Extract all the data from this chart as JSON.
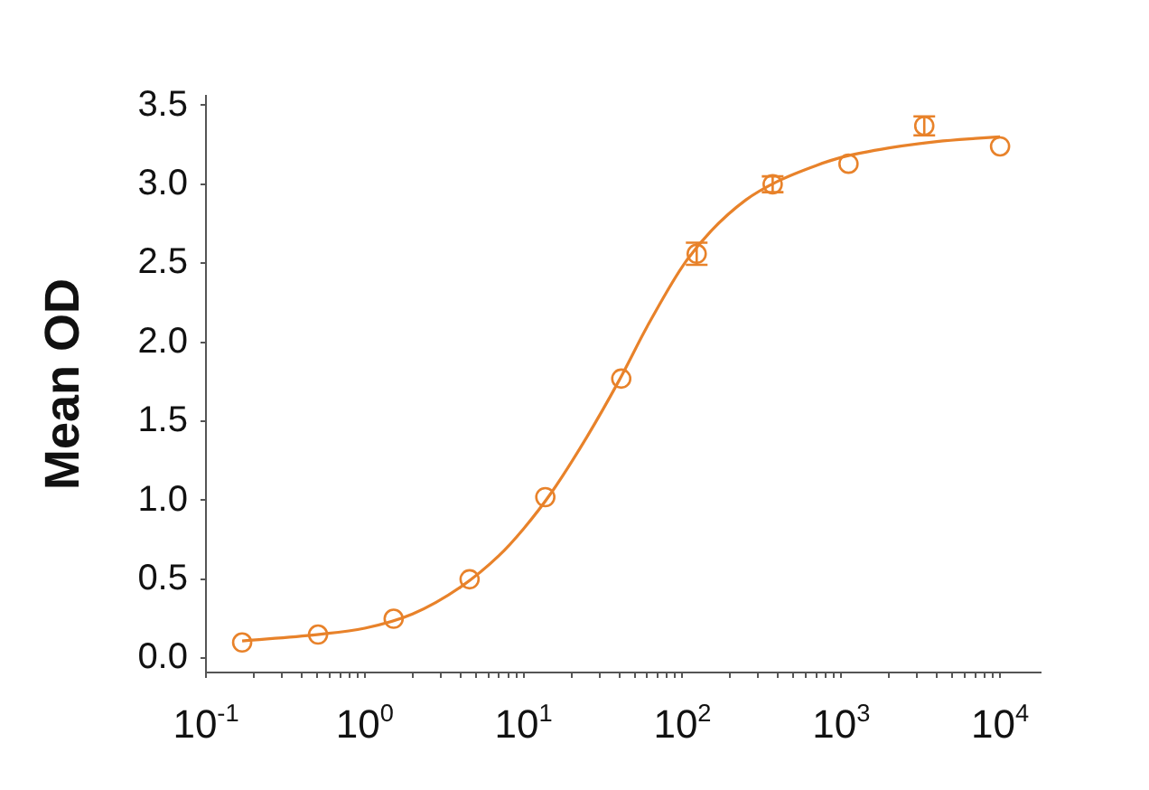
{
  "chart_data": {
    "type": "scatter",
    "ylabel": "Mean OD",
    "log": "x",
    "marker": "circle",
    "grid": false,
    "xlim": [
      0.1,
      18000
    ],
    "ylim": [
      -0.09,
      3.56
    ],
    "xticks": [
      {
        "value": 0.1,
        "label": "10$^{-1}$"
      },
      {
        "value": 0.2,
        "label": null
      },
      {
        "value": 0.3,
        "label": null
      },
      {
        "value": 0.4,
        "label": null
      },
      {
        "value": 0.5,
        "label": null
      },
      {
        "value": 0.6,
        "label": null
      },
      {
        "value": 0.7,
        "label": null
      },
      {
        "value": 0.8,
        "label": null
      },
      {
        "value": 0.9,
        "label": null
      },
      {
        "value": 1,
        "label": "10$^{0}$"
      },
      {
        "value": 2,
        "label": null
      },
      {
        "value": 3,
        "label": null
      },
      {
        "value": 4,
        "label": null
      },
      {
        "value": 5,
        "label": null
      },
      {
        "value": 6,
        "label": null
      },
      {
        "value": 7,
        "label": null
      },
      {
        "value": 8,
        "label": null
      },
      {
        "value": 9,
        "label": null
      },
      {
        "value": 10,
        "label": "10$^{1}$"
      },
      {
        "value": 20,
        "label": null
      },
      {
        "value": 30,
        "label": null
      },
      {
        "value": 40,
        "label": null
      },
      {
        "value": 50,
        "label": null
      },
      {
        "value": 60,
        "label": null
      },
      {
        "value": 70,
        "label": null
      },
      {
        "value": 80,
        "label": null
      },
      {
        "value": 90,
        "label": null
      },
      {
        "value": 100,
        "label": "10$^{2}$"
      },
      {
        "value": 200,
        "label": null
      },
      {
        "value": 300,
        "label": null
      },
      {
        "value": 400,
        "label": null
      },
      {
        "value": 500,
        "label": null
      },
      {
        "value": 600,
        "label": null
      },
      {
        "value": 700,
        "label": null
      },
      {
        "value": 800,
        "label": null
      },
      {
        "value": 900,
        "label": null
      },
      {
        "value": 1000,
        "label": "10$^{3}$"
      },
      {
        "value": 2000,
        "label": null
      },
      {
        "value": 3000,
        "label": null
      },
      {
        "value": 4000,
        "label": null
      },
      {
        "value": 5000,
        "label": null
      },
      {
        "value": 6000,
        "label": null
      },
      {
        "value": 7000,
        "label": null
      },
      {
        "value": 8000,
        "label": null
      },
      {
        "value": 9000,
        "label": null
      },
      {
        "value": 10000,
        "label": "10$^{4}$"
      }
    ],
    "yticks": [
      {
        "value": 0,
        "label": "0.0"
      },
      {
        "value": 0.5,
        "label": "0.5"
      },
      {
        "value": 1,
        "label": "1.0"
      },
      {
        "value": 1.5,
        "label": "1.5"
      },
      {
        "value": 2,
        "label": "2.0"
      },
      {
        "value": 2.5,
        "label": "2.5"
      },
      {
        "value": 3,
        "label": "3.0"
      },
      {
        "value": 3.5,
        "label": "3.5"
      }
    ],
    "series": [
      {
        "type": "scatter",
        "color": "#e8822a",
        "x": [
          0.169,
          0.508,
          1.52,
          4.57,
          13.7,
          41.2,
          123,
          370,
          1111,
          3333,
          10000
        ],
        "values": [
          0.1,
          0.15,
          0.25,
          0.5,
          1.02,
          1.77,
          2.56,
          3.0,
          3.13,
          3.37,
          3.24
        ],
        "errors": [
          null,
          null,
          null,
          null,
          null,
          null,
          0.07,
          0.05,
          null,
          0.06,
          null
        ]
      },
      {
        "type": "line",
        "color": "#e8822a",
        "marker": "none",
        "x": [
          0.169,
          0.5,
          1,
          2,
          4,
          7,
          10,
          15,
          25,
          40,
          60,
          100,
          150,
          250,
          400,
          700,
          1000,
          2000,
          4000,
          7000,
          10000
        ],
        "values": [
          0.11,
          0.15,
          0.19,
          0.28,
          0.45,
          0.65,
          0.82,
          1.05,
          1.4,
          1.76,
          2.1,
          2.48,
          2.7,
          2.9,
          3.02,
          3.12,
          3.17,
          3.23,
          3.27,
          3.29,
          3.3
        ]
      }
    ]
  }
}
